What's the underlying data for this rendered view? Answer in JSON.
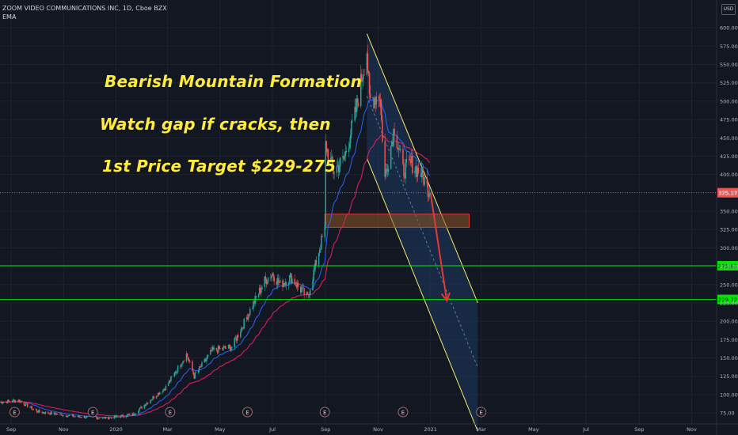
{
  "header": {
    "symbol_line": "ZOOM VIDEO COMMUNICATIONS INC, 1D, Cboe BZX",
    "indicator_label": "EMA"
  },
  "annotations": {
    "title": "Bearish Mountain Formation",
    "line2": "Watch gap if cracks, then",
    "line3": "1st Price Target $229-275"
  },
  "price_axis": {
    "currency_badge": "USD",
    "ticks": [
      "600.00",
      "575.00",
      "550.00",
      "525.00",
      "500.00",
      "475.00",
      "450.00",
      "425.00",
      "400.00",
      "375.00",
      "350.00",
      "325.00",
      "300.00",
      "275.00",
      "250.00",
      "225.00",
      "200.00",
      "175.00",
      "150.00",
      "125.00",
      "100.00",
      "75.00"
    ]
  },
  "time_axis": {
    "ticks": [
      "Sep",
      "Nov",
      "2020",
      "Mar",
      "May",
      "Jul",
      "Sep",
      "Nov",
      "2021",
      "Mar",
      "May",
      "Jul",
      "Sep",
      "Nov"
    ]
  },
  "colors": {
    "background": "#131722",
    "up_candle": "#26a69a",
    "down_candle": "#ef5350",
    "ema_fast": "#2962ff",
    "ema_slow": "#e91e63",
    "channel": "#f6e96b",
    "channel_fill": "#1e3a5f",
    "green_levels": "#00e600",
    "current_price": "#ef5350",
    "annotation_text": "#ffeb3b",
    "arrow": "#e53935"
  },
  "chart_data": {
    "type": "candlestick",
    "title": "ZOOM VIDEO COMMUNICATIONS INC, 1D, Cboe BZX",
    "ylim": [
      60,
      612
    ],
    "x_range": [
      "2019-08-19",
      "2021-11-30"
    ],
    "price_path": [
      [
        "2019-08-19",
        90
      ],
      [
        "2019-09-10",
        92
      ],
      [
        "2019-10-01",
        77
      ],
      [
        "2019-11-15",
        70
      ],
      [
        "2019-12-20",
        68
      ],
      [
        "2020-01-21",
        73
      ],
      [
        "2020-02-12",
        95
      ],
      [
        "2020-02-28",
        110
      ],
      [
        "2020-03-23",
        155
      ],
      [
        "2020-04-01",
        125
      ],
      [
        "2020-04-22",
        160
      ],
      [
        "2020-05-15",
        165
      ],
      [
        "2020-06-03",
        210
      ],
      [
        "2020-06-22",
        255
      ],
      [
        "2020-07-01",
        265
      ],
      [
        "2020-07-10",
        250
      ],
      [
        "2020-07-22",
        260
      ],
      [
        "2020-08-11",
        232
      ],
      [
        "2020-08-25",
        300
      ],
      [
        "2020-08-31",
        325
      ],
      [
        "2020-09-01",
        440
      ],
      [
        "2020-09-10",
        405
      ],
      [
        "2020-09-22",
        420
      ],
      [
        "2020-10-05",
        480
      ],
      [
        "2020-10-19",
        570
      ],
      [
        "2020-10-22",
        500
      ],
      [
        "2020-11-03",
        510
      ],
      [
        "2020-11-09",
        395
      ],
      [
        "2020-11-20",
        465
      ],
      [
        "2020-11-30",
        405
      ],
      [
        "2020-12-10",
        415
      ],
      [
        "2020-12-22",
        400
      ],
      [
        "2020-12-31",
        375
      ]
    ],
    "current_price": "375.17",
    "levels": [
      {
        "label": "275.61",
        "price": 275.61
      },
      {
        "label": "229.72",
        "price": 229.72
      }
    ],
    "gap_zone": {
      "start": "2020-08-31",
      "end": "2021-02-15",
      "low": 328,
      "high": 346
    },
    "channel": {
      "upper": [
        [
          "2020-10-19",
          592
        ],
        [
          "2021-02-25",
          225
        ]
      ],
      "lower": [
        [
          "2020-10-19",
          422
        ],
        [
          "2021-02-25",
          50
        ]
      ],
      "median": [
        [
          "2020-10-19",
          507
        ],
        [
          "2021-02-25",
          137
        ]
      ],
      "fill_from": "2020-10-19"
    },
    "projection_arrow": [
      [
        "2021-01-01",
        375
      ],
      [
        "2021-01-20",
        228
      ]
    ],
    "earnings_markers": [
      "2019-09-05",
      "2019-12-05",
      "2020-03-04",
      "2020-06-02",
      "2020-08-31",
      "2020-11-30",
      "2021-03-01"
    ],
    "earnings_label": "E"
  }
}
